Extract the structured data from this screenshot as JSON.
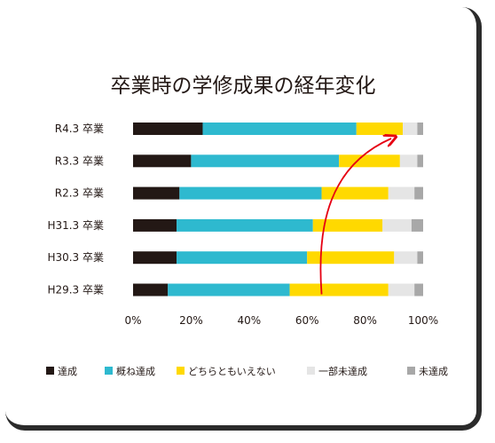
{
  "chart_data": {
    "type": "bar",
    "orientation": "horizontal",
    "stacked": true,
    "title": "卒業時の学修成果の経年変化",
    "categories": [
      "R4.3 卒業",
      "R3.3 卒業",
      "R2.3 卒業",
      "H31.3 卒業",
      "H30.3 卒業",
      "H29.3 卒業"
    ],
    "series": [
      {
        "name": "達成",
        "color": "#231815",
        "values": [
          24,
          20,
          16,
          15,
          15,
          12
        ]
      },
      {
        "name": "概ね達成",
        "color": "#2eb9cf",
        "values": [
          53,
          51,
          49,
          47,
          45,
          42
        ]
      },
      {
        "name": "どちらともいえない",
        "color": "#ffd900",
        "values": [
          16,
          21,
          23,
          24,
          30,
          34
        ]
      },
      {
        "name": "一部未達成",
        "color": "#e5e5e5",
        "values": [
          5,
          6,
          9,
          10,
          8,
          9
        ]
      },
      {
        "name": "未達成",
        "color": "#a8a8a8",
        "values": [
          2,
          2,
          3,
          4,
          2,
          3
        ]
      }
    ],
    "x_ticks": [
      "0%",
      "20%",
      "40%",
      "60%",
      "80%",
      "100%"
    ],
    "xlim": [
      0,
      100
    ],
    "legend_position": "bottom",
    "annotation": {
      "type": "curved-arrow",
      "color": "#e60012",
      "from": {
        "category": "H29.3 卒業",
        "x": 65
      },
      "to": {
        "category": "R4.3 卒業",
        "x": 89
      }
    }
  }
}
